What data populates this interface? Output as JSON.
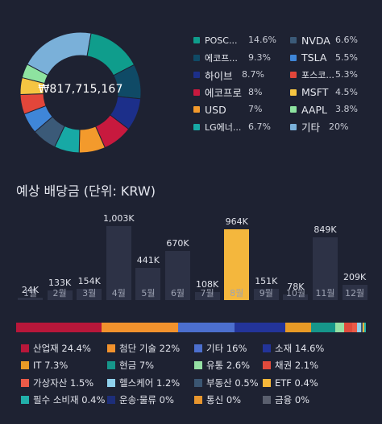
{
  "portfolio": {
    "total": "₩817,715,167",
    "holdings": [
      {
        "name": "POSC...",
        "pct": "14.6%",
        "color": "#0f9d8c",
        "value": 14.6
      },
      {
        "name": "에코프...",
        "pct": "9.3%",
        "color": "#0f4a66",
        "value": 9.3
      },
      {
        "name": "하이브",
        "pct": "8.7%",
        "color": "#1c2f8a",
        "value": 8.7
      },
      {
        "name": "에코프로",
        "pct": "8%",
        "color": "#c8193e",
        "value": 8.0
      },
      {
        "name": "USD",
        "pct": "7%",
        "color": "#f39a2c",
        "value": 7.0
      },
      {
        "name": "LG에너...",
        "pct": "6.7%",
        "color": "#17a9a5",
        "value": 6.7
      },
      {
        "name": "NVDA",
        "pct": "6.6%",
        "color": "#3b5a78",
        "value": 6.6
      },
      {
        "name": "TSLA",
        "pct": "5.5%",
        "color": "#3f86d8",
        "value": 5.5
      },
      {
        "name": "포스코...",
        "pct": "5.3%",
        "color": "#e2463a",
        "value": 5.3
      },
      {
        "name": "MSFT",
        "pct": "4.5%",
        "color": "#f5c542",
        "value": 4.5
      },
      {
        "name": "AAPL",
        "pct": "3.8%",
        "color": "#8ee3a0",
        "value": 3.8
      },
      {
        "name": "기타",
        "pct": "20%",
        "color": "#7ab0d9",
        "value": 20.0
      }
    ]
  },
  "dividend": {
    "title": "예상 배당금 (단위: KRW)",
    "chart_data": {
      "type": "bar",
      "categories": [
        "1월",
        "2월",
        "3월",
        "4월",
        "5월",
        "6월",
        "7월",
        "8월",
        "9월",
        "10월",
        "11월",
        "12월"
      ],
      "values": [
        24,
        133,
        154,
        1003,
        441,
        670,
        108,
        964,
        151,
        78,
        849,
        209
      ],
      "labels": [
        "24K",
        "133K",
        "154K",
        "1,003K",
        "441K",
        "670K",
        "108K",
        "964K",
        "151K",
        "78K",
        "849K",
        "209K"
      ],
      "highlight_index": 7,
      "highlight_color": "#f4b73d",
      "bar_color": "#2d3246"
    }
  },
  "sectors": [
    {
      "name": "산업재",
      "pct": "24.4%",
      "color": "#b8173a",
      "value": 24.4
    },
    {
      "name": "첨단 기술",
      "pct": "22%",
      "color": "#f2922d",
      "value": 22.0
    },
    {
      "name": "기타",
      "pct": "16%",
      "color": "#4c6fce",
      "value": 16.0
    },
    {
      "name": "소재",
      "pct": "14.6%",
      "color": "#23349a",
      "value": 14.6
    },
    {
      "name": "IT",
      "pct": "7.3%",
      "color": "#e89a26",
      "value": 7.3
    },
    {
      "name": "현금",
      "pct": "7%",
      "color": "#16968a",
      "value": 7.0
    },
    {
      "name": "유통",
      "pct": "2.6%",
      "color": "#95e0a4",
      "value": 2.6
    },
    {
      "name": "채권",
      "pct": "2.1%",
      "color": "#e04a3c",
      "value": 2.1
    },
    {
      "name": "가상자산",
      "pct": "1.5%",
      "color": "#ea5a48",
      "value": 1.5
    },
    {
      "name": "헬스케어",
      "pct": "1.2%",
      "color": "#8fd1ec",
      "value": 1.2
    },
    {
      "name": "부동산",
      "pct": "0.5%",
      "color": "#3b5672",
      "value": 0.5
    },
    {
      "name": "ETF",
      "pct": "0.4%",
      "color": "#f5b73a",
      "value": 0.4
    },
    {
      "name": "필수 소비재",
      "pct": "0.4%",
      "color": "#22b0aa",
      "value": 0.4
    },
    {
      "name": "운송·물류",
      "pct": "0%",
      "color": "#1d2e7a",
      "value": 0
    },
    {
      "name": "통신",
      "pct": "0%",
      "color": "#e8962e",
      "value": 0
    },
    {
      "name": "금융",
      "pct": "0%",
      "color": "#5a5f6e",
      "value": 0
    }
  ]
}
